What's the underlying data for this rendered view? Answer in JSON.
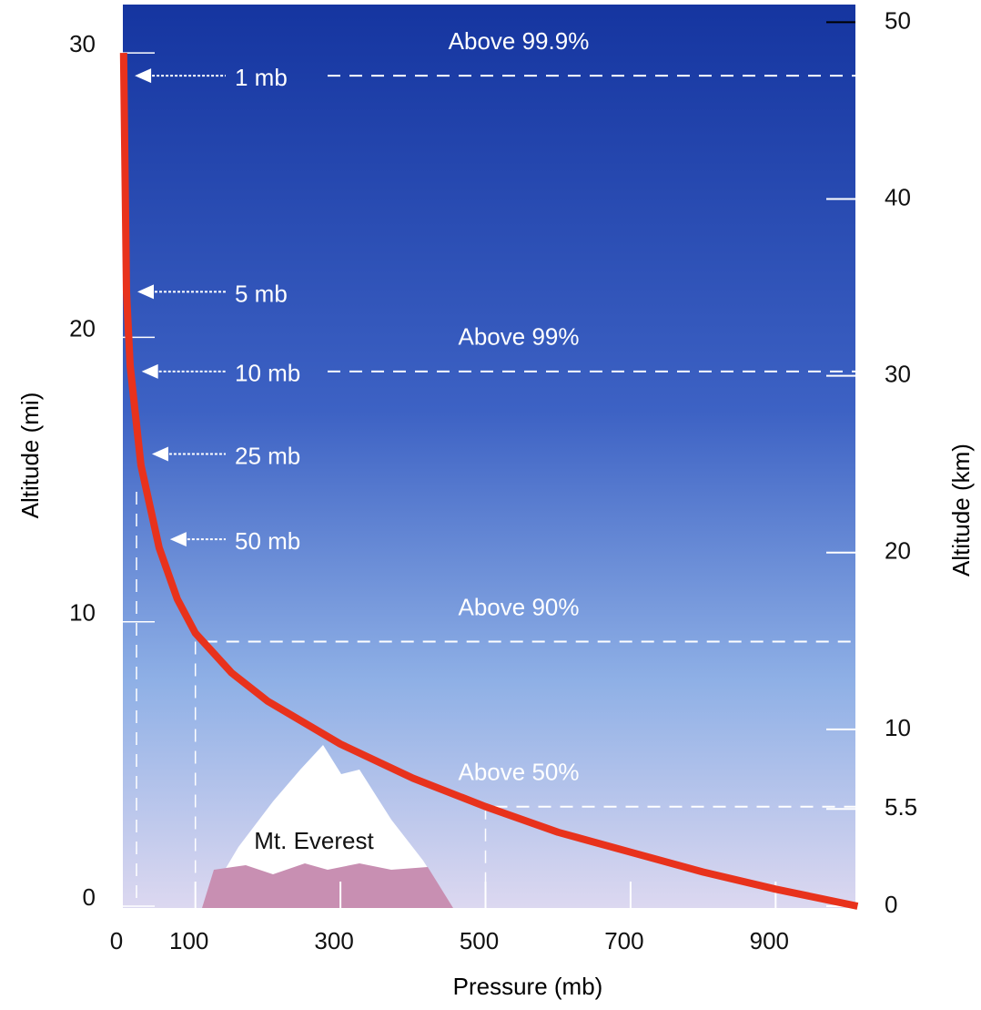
{
  "chart_data": {
    "type": "line",
    "x_label": "Pressure (mb)",
    "y_label": "Altitude (mi)",
    "y2_label": "Altitude (km)",
    "x": [
      1013,
      900,
      800,
      700,
      600,
      500,
      400,
      300,
      200,
      150,
      100,
      75,
      50,
      25,
      10,
      5,
      1
    ],
    "values": [
      0,
      0.6,
      1.2,
      1.9,
      2.6,
      3.5,
      4.5,
      5.7,
      7.2,
      8.2,
      9.6,
      10.8,
      12.6,
      15.5,
      19,
      21.6,
      30
    ],
    "color": "#e8321c",
    "xlim": [
      0,
      1010
    ],
    "xticks": [
      0,
      100,
      300,
      500,
      700,
      900
    ],
    "ylim": [
      0,
      31.7
    ],
    "yticks": [
      0,
      10,
      20,
      30
    ],
    "y2lim": [
      0,
      51
    ],
    "y2ticks": [
      0,
      5.5,
      10,
      20,
      30,
      40,
      50
    ],
    "pressure_labels": [
      {
        "text": "1 mb",
        "pressure": 1,
        "altitude": 29.2
      },
      {
        "text": "5 mb",
        "pressure": 5,
        "altitude": 21.6
      },
      {
        "text": "10 mb",
        "pressure": 10,
        "altitude": 18.8
      },
      {
        "text": "25 mb",
        "pressure": 25,
        "altitude": 15.9
      },
      {
        "text": "50 mb",
        "pressure": 50,
        "altitude": 12.9
      }
    ],
    "reference_lines": [
      {
        "text": "Above 99.9%",
        "pressure": 1,
        "altitude": 29.2
      },
      {
        "text": "Above 99%",
        "pressure": 10,
        "altitude": 18.8
      },
      {
        "text": "Above 90%",
        "pressure": 100,
        "altitude": 9.3
      },
      {
        "text": "Above 50%",
        "pressure": 500,
        "altitude": 3.5
      }
    ],
    "mountain_label": "Mt. Everest"
  }
}
